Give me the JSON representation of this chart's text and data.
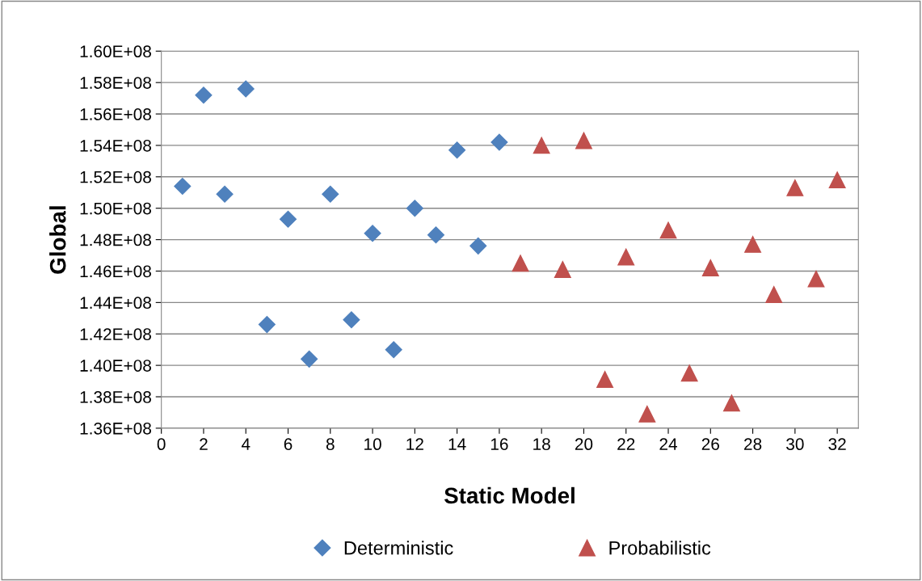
{
  "chart_data": {
    "type": "scatter",
    "xlabel": "Static Model",
    "ylabel": "Global",
    "series": [
      {
        "name": "Deterministic",
        "color": "#4f81bd",
        "marker": "diamond",
        "x": [
          1,
          2,
          3,
          4,
          5,
          6,
          7,
          8,
          9,
          10,
          11,
          12,
          13,
          14,
          15,
          16
        ],
        "values": [
          151400000,
          157200000,
          150900000,
          157600000,
          142600000,
          149300000,
          140400000,
          150900000,
          142900000,
          148400000,
          141000000,
          150000000,
          148300000,
          153700000,
          147600000,
          154200000
        ]
      },
      {
        "name": "Probabilistic",
        "color": "#c0504d",
        "marker": "triangle",
        "x": [
          17,
          18,
          19,
          20,
          21,
          22,
          23,
          24,
          25,
          26,
          27,
          28,
          29,
          30,
          31,
          32
        ],
        "values": [
          146500000,
          154000000,
          146100000,
          154300000,
          139100000,
          146900000,
          136900000,
          148600000,
          139500000,
          146200000,
          137600000,
          147700000,
          144500000,
          151300000,
          145500000,
          151800000
        ]
      }
    ],
    "xlim": [
      0,
      33
    ],
    "xticks": [
      0,
      2,
      4,
      6,
      8,
      10,
      12,
      14,
      16,
      18,
      20,
      22,
      24,
      26,
      28,
      30,
      32
    ],
    "ylim": [
      136000000,
      160000000
    ],
    "yticks": [
      {
        "value": 136000000,
        "label": "1.36E+08"
      },
      {
        "value": 138000000,
        "label": "1.38E+08"
      },
      {
        "value": 140000000,
        "label": "1.40E+08"
      },
      {
        "value": 142000000,
        "label": "1.42E+08"
      },
      {
        "value": 144000000,
        "label": "1.44E+08"
      },
      {
        "value": 146000000,
        "label": "1.46E+08"
      },
      {
        "value": 148000000,
        "label": "1.48E+08"
      },
      {
        "value": 150000000,
        "label": "1.50E+08"
      },
      {
        "value": 152000000,
        "label": "1.52E+08"
      },
      {
        "value": 154000000,
        "label": "1.54E+08"
      },
      {
        "value": 156000000,
        "label": "1.56E+08"
      },
      {
        "value": 158000000,
        "label": "1.58E+08"
      },
      {
        "value": 160000000,
        "label": "1.60E+08"
      }
    ],
    "grid": "y",
    "legend": "bottom"
  }
}
